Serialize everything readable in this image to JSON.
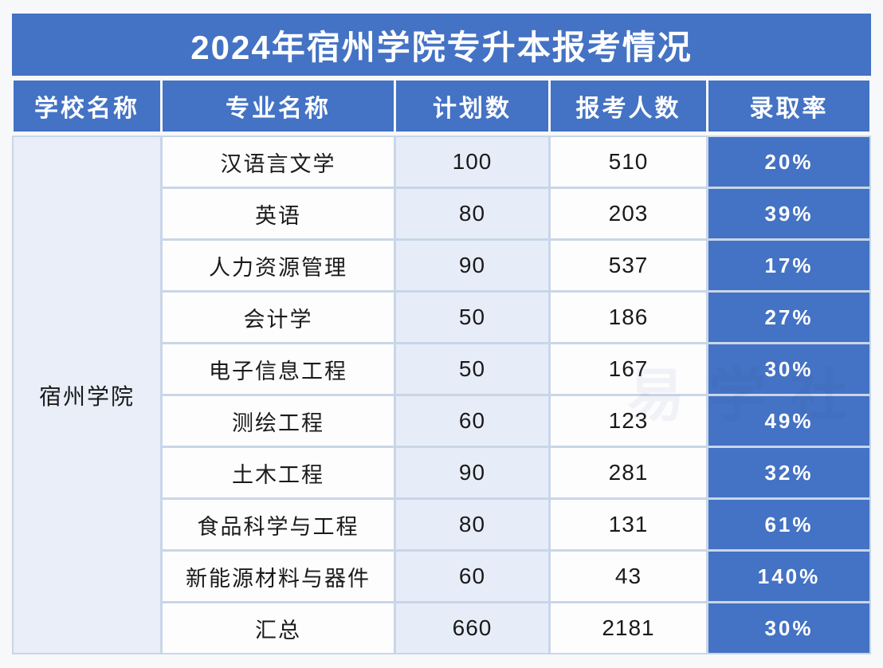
{
  "page": {
    "background": "#f7f8fa"
  },
  "table": {
    "title": "2024年宿州学院专升本报考情况",
    "school": "宿州学院",
    "columns": [
      "学校名称",
      "专业名称",
      "计划数",
      "报考人数",
      "录取率"
    ],
    "watermark": "易学社"
  },
  "chart_data": {
    "type": "table",
    "title": "2024年宿州学院专升本报考情况",
    "columns": [
      "学校名称",
      "专业名称",
      "计划数",
      "报考人数",
      "录取率"
    ],
    "school": "宿州学院",
    "rows": [
      {
        "major": "汉语言文学",
        "plan": "100",
        "applicants": "510",
        "rate": "20%"
      },
      {
        "major": "英语",
        "plan": "80",
        "applicants": "203",
        "rate": "39%"
      },
      {
        "major": "人力资源管理",
        "plan": "90",
        "applicants": "537",
        "rate": "17%"
      },
      {
        "major": "会计学",
        "plan": "50",
        "applicants": "186",
        "rate": "27%"
      },
      {
        "major": "电子信息工程",
        "plan": "50",
        "applicants": "167",
        "rate": "30%"
      },
      {
        "major": "测绘工程",
        "plan": "60",
        "applicants": "123",
        "rate": "49%"
      },
      {
        "major": "土木工程",
        "plan": "90",
        "applicants": "281",
        "rate": "32%"
      },
      {
        "major": "食品科学与工程",
        "plan": "80",
        "applicants": "131",
        "rate": "61%"
      },
      {
        "major": "新能源材料与器件",
        "plan": "60",
        "applicants": "43",
        "rate": "140%"
      },
      {
        "major": "汇总",
        "plan": "660",
        "applicants": "2181",
        "rate": "30%"
      }
    ],
    "colors": {
      "accent_blue": "#4472c4",
      "light_blue_cell": "#e9eef8",
      "plan_column_cell": "#e7edf8",
      "white_cell": "#fdfdfe",
      "grid_line": "#c9d6e8",
      "header_text": "#ffffff",
      "body_text": "#1a1a1a"
    }
  }
}
